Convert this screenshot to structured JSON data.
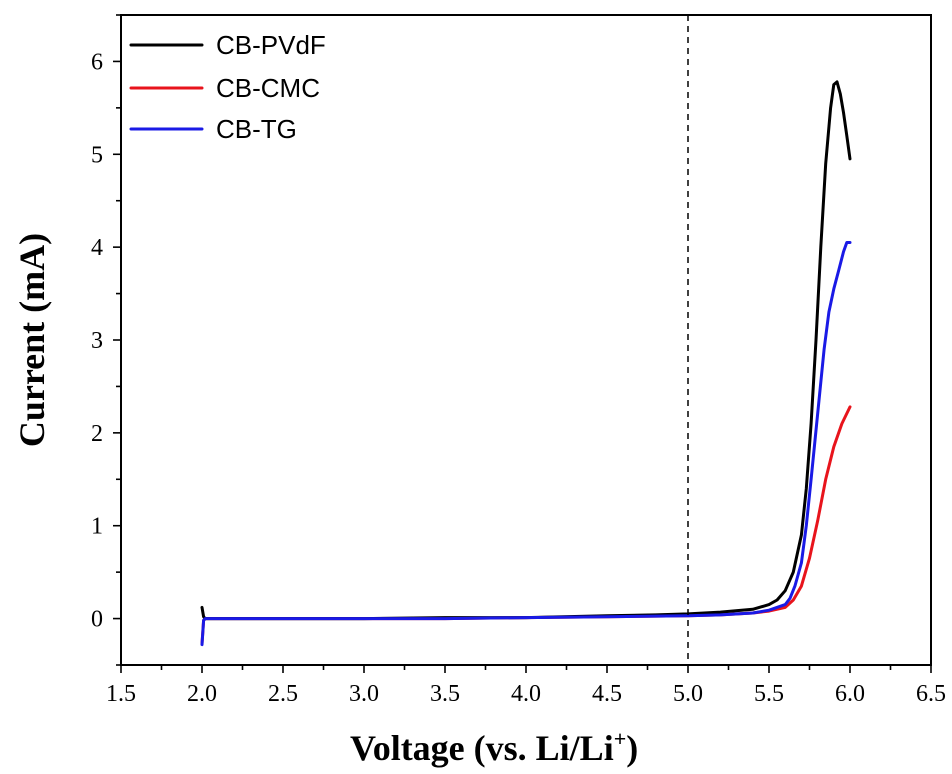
{
  "chart_data": {
    "type": "line",
    "xlabel": "Voltage (vs. Li/Li",
    "xlabel_superscript": "+",
    "xlabel_suffix": ")",
    "ylabel": "Current (mA)",
    "xlim": [
      1.5,
      6.5
    ],
    "ylim": [
      -0.5,
      6.5
    ],
    "x_ticks": [
      "1.5",
      "2.0",
      "2.5",
      "3.0",
      "3.5",
      "4.0",
      "4.5",
      "5.0",
      "5.5",
      "6.0",
      "6.5"
    ],
    "y_ticks": [
      "0",
      "1",
      "2",
      "3",
      "4",
      "5",
      "6"
    ],
    "grid": false,
    "legend_position": "top-left",
    "reference_line_x": 5.0,
    "series": [
      {
        "name": "CB-PVdF",
        "color": "#000000",
        "x": [
          2.0,
          2.01,
          2.02,
          2.5,
          3.0,
          3.5,
          4.0,
          4.5,
          4.8,
          5.0,
          5.2,
          5.4,
          5.5,
          5.55,
          5.6,
          5.65,
          5.7,
          5.73,
          5.76,
          5.79,
          5.82,
          5.85,
          5.88,
          5.9,
          5.92,
          5.94,
          5.96,
          5.98,
          6.0
        ],
        "y": [
          0.12,
          0.02,
          0.0,
          0.0,
          0.0,
          0.01,
          0.01,
          0.03,
          0.04,
          0.05,
          0.07,
          0.1,
          0.15,
          0.2,
          0.3,
          0.5,
          0.9,
          1.4,
          2.1,
          3.0,
          4.0,
          4.9,
          5.5,
          5.75,
          5.78,
          5.65,
          5.45,
          5.2,
          4.95
        ]
      },
      {
        "name": "CB-CMC",
        "color": "#e8141c",
        "x": [
          2.0,
          2.01,
          2.02,
          2.5,
          3.0,
          3.5,
          4.0,
          4.5,
          5.0,
          5.2,
          5.4,
          5.5,
          5.6,
          5.65,
          5.7,
          5.75,
          5.8,
          5.85,
          5.9,
          5.95,
          6.0
        ],
        "y": [
          -0.27,
          -0.02,
          0.0,
          0.0,
          0.0,
          0.0,
          0.01,
          0.02,
          0.03,
          0.04,
          0.06,
          0.08,
          0.12,
          0.2,
          0.35,
          0.65,
          1.05,
          1.5,
          1.85,
          2.1,
          2.28
        ]
      },
      {
        "name": "CB-TG",
        "color": "#1a1ae6",
        "x": [
          2.0,
          2.01,
          2.02,
          2.5,
          3.0,
          3.5,
          4.0,
          4.5,
          5.0,
          5.2,
          5.4,
          5.5,
          5.6,
          5.63,
          5.66,
          5.7,
          5.73,
          5.76,
          5.8,
          5.84,
          5.87,
          5.9,
          5.93,
          5.96,
          5.98,
          6.0
        ],
        "y": [
          -0.28,
          -0.02,
          0.0,
          0.0,
          0.0,
          0.0,
          0.01,
          0.02,
          0.03,
          0.04,
          0.06,
          0.09,
          0.15,
          0.22,
          0.35,
          0.6,
          1.0,
          1.5,
          2.2,
          2.9,
          3.3,
          3.55,
          3.75,
          3.95,
          4.05,
          4.05
        ]
      }
    ]
  }
}
